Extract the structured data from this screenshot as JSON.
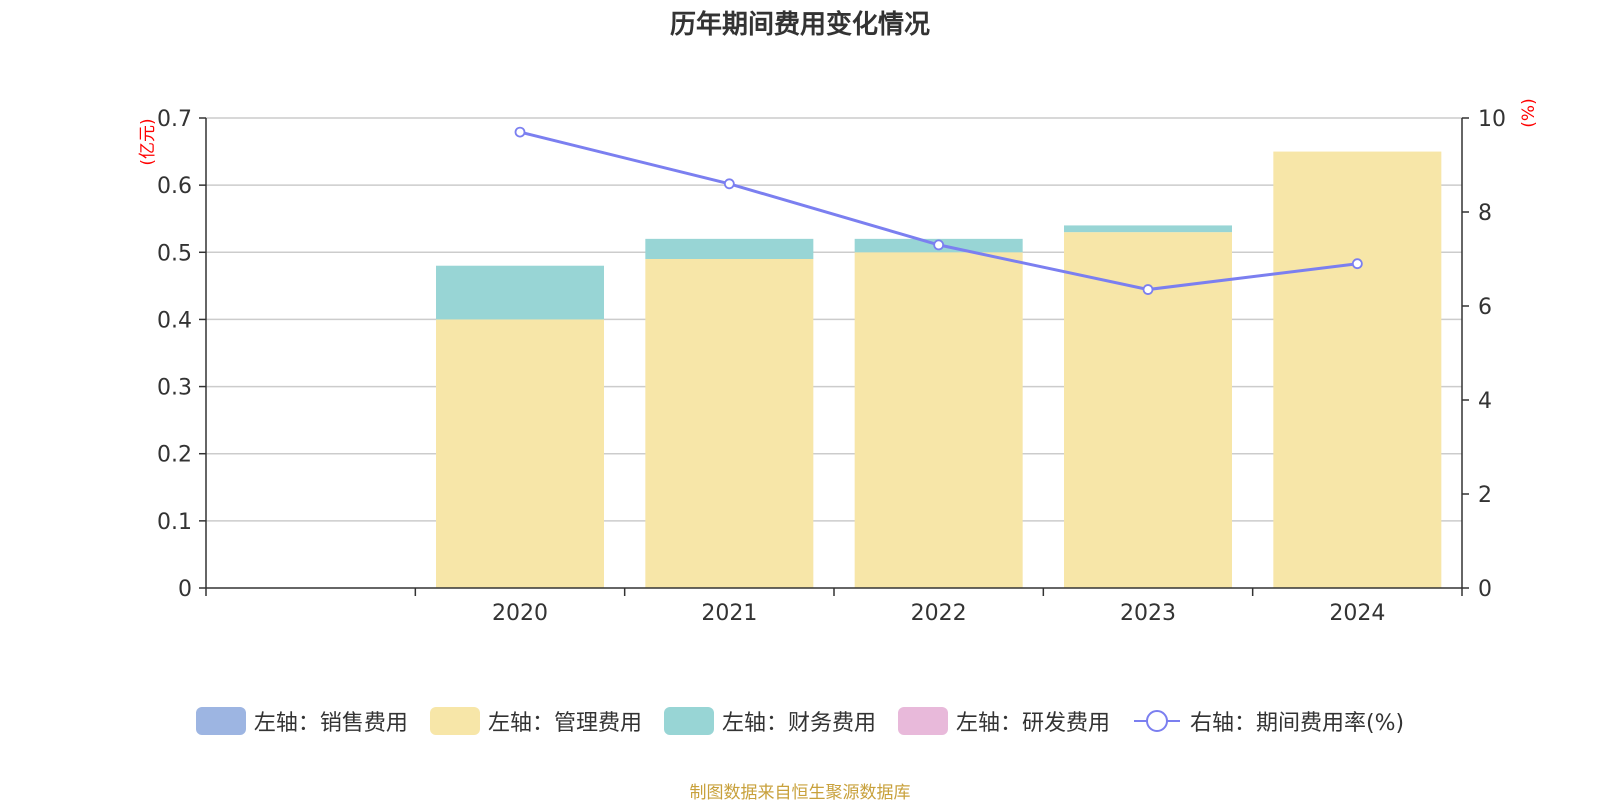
{
  "chart_data": {
    "type": "bar",
    "title": "历年期间费用变化情况",
    "categories": [
      "",
      "2020",
      "2021",
      "2022",
      "2023",
      "2024"
    ],
    "series": [
      {
        "name": "左轴：销售费用",
        "type": "bar",
        "axis": "left",
        "color": "#9db5e2",
        "values": [
          null,
          null,
          null,
          null,
          null,
          null
        ]
      },
      {
        "name": "左轴：管理费用",
        "type": "bar",
        "axis": "left",
        "color": "#f7e6a8",
        "values": [
          null,
          0.4,
          0.49,
          0.5,
          0.53,
          0.65
        ]
      },
      {
        "name": "左轴：财务费用",
        "type": "bar",
        "axis": "left",
        "color": "#98d5d5",
        "values": [
          null,
          0.08,
          0.03,
          0.02,
          0.01,
          null
        ]
      },
      {
        "name": "左轴：研发费用",
        "type": "bar",
        "axis": "left",
        "color": "#e8b9da",
        "values": [
          null,
          null,
          null,
          null,
          null,
          null
        ]
      },
      {
        "name": "右轴：期间费用率(%)",
        "type": "line",
        "axis": "right",
        "color": "#7b7ff0",
        "values": [
          null,
          9.7,
          8.6,
          7.3,
          6.35,
          6.9
        ]
      }
    ],
    "left_axis": {
      "label": "(亿元)",
      "min": 0,
      "max": 0.7,
      "ticks": [
        "0",
        "0.1",
        "0.2",
        "0.3",
        "0.4",
        "0.5",
        "0.6",
        "0.7"
      ]
    },
    "right_axis": {
      "label": "(%)",
      "min": 0,
      "max": 10,
      "ticks": [
        "0",
        "2",
        "4",
        "6",
        "8",
        "10"
      ]
    },
    "grid": true,
    "legend_position": "bottom",
    "axis_label_color": "#ff0000",
    "source_note": "制图数据来自恒生聚源数据库",
    "source_color": "#c8a13c"
  }
}
